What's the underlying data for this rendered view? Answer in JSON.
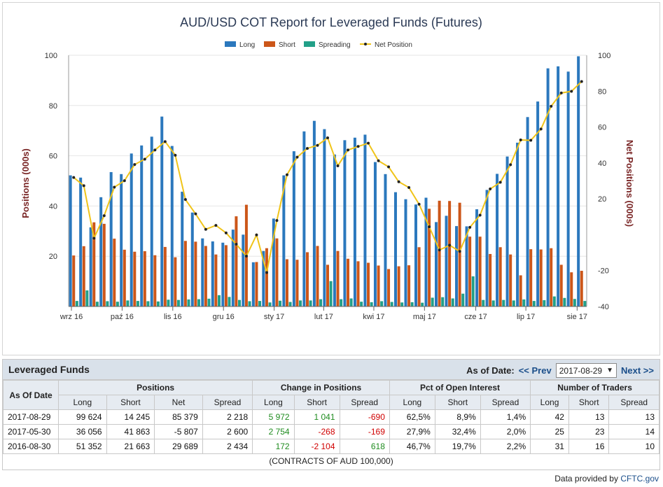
{
  "chart_data": {
    "type": "bar",
    "title": "AUD/USD COT Report for Leveraged Funds (Futures)",
    "ylabel": "Positions (000s)",
    "y2label": "Net Positions (000s)",
    "ylim": [
      0,
      100
    ],
    "y2lim": [
      -40,
      100
    ],
    "yticks": [
      20,
      40,
      60,
      80,
      100
    ],
    "y2ticks": [
      -40,
      -20,
      20,
      40,
      60,
      80,
      100
    ],
    "xtick_labels": [
      "wrz 16",
      "paź 16",
      "lis 16",
      "gru 16",
      "sty 17",
      "lut 17",
      "kwi 17",
      "maj 17",
      "cze 17",
      "lip 17",
      "sie 17"
    ],
    "legend": [
      "Long",
      "Short",
      "Spreading",
      "Net Position"
    ],
    "legend_position": "top-center",
    "colors": {
      "long": "#2b78bd",
      "short": "#cc5619",
      "spreading": "#22a088",
      "net": "#f0c419"
    },
    "series": [
      {
        "name": "Long",
        "values": [
          52.2,
          51.3,
          31.5,
          43.5,
          53.5,
          52.7,
          60.9,
          64.1,
          67.6,
          75.6,
          63.9,
          45.7,
          37.4,
          27.1,
          25.9,
          25.4,
          30.6,
          28.6,
          17.6,
          22.1,
          35.0,
          52.2,
          61.8,
          69.7,
          73.9,
          70.6,
          60.5,
          66.2,
          67.2,
          68.4,
          57.5,
          52.7,
          45.5,
          42.7,
          40.6,
          43.3,
          33.6,
          36.1,
          32.0,
          31.9,
          38.7,
          46.4,
          52.8,
          59.7,
          65.2,
          75.4,
          81.6,
          94.8,
          95.6,
          93.5,
          99.6
        ]
      },
      {
        "name": "Short",
        "values": [
          20.3,
          24.0,
          33.5,
          32.9,
          27.0,
          22.6,
          21.8,
          22.0,
          20.4,
          23.7,
          19.6,
          26.1,
          25.8,
          24.1,
          20.7,
          24.4,
          35.9,
          40.5,
          17.7,
          23.2,
          27.1,
          18.8,
          18.6,
          21.6,
          24.1,
          16.6,
          22.1,
          19.0,
          18.0,
          17.4,
          16.3,
          14.9,
          16.0,
          16.4,
          23.6,
          38.9,
          42.1,
          42.0,
          41.3,
          27.8,
          27.8,
          20.9,
          23.6,
          20.7,
          12.4,
          22.8,
          22.7,
          23.2,
          16.6,
          13.6,
          14.2
        ]
      },
      {
        "name": "Spreading",
        "values": [
          2.2,
          6.4,
          1.9,
          2.1,
          1.9,
          2.4,
          2.2,
          2.1,
          2.0,
          2.7,
          2.6,
          2.8,
          2.9,
          3.1,
          4.5,
          3.8,
          2.6,
          2.1,
          2.2,
          1.6,
          2.3,
          1.8,
          2.4,
          2.4,
          2.9,
          10.1,
          2.9,
          3.2,
          1.9,
          1.7,
          2.1,
          1.8,
          1.6,
          1.7,
          1.5,
          3.5,
          3.7,
          3.2,
          5.1,
          12.0,
          2.6,
          2.4,
          2.6,
          2.4,
          2.8,
          2.2,
          2.5,
          4.0,
          3.4,
          3.0,
          2.2
        ]
      },
      {
        "name": "Net Position",
        "values": [
          31.9,
          27.3,
          -2.0,
          10.6,
          26.5,
          30.1,
          39.1,
          42.1,
          47.2,
          51.9,
          44.3,
          19.6,
          11.6,
          3.0,
          5.2,
          1.0,
          -5.3,
          -11.9,
          -0.1,
          -21.1,
          7.9,
          33.4,
          43.2,
          48.1,
          49.8,
          54.0,
          38.4,
          47.2,
          49.2,
          51.0,
          41.2,
          37.8,
          29.5,
          26.3,
          17.0,
          4.4,
          -8.5,
          -5.9,
          -9.3,
          4.1,
          10.9,
          25.5,
          29.2,
          39.0,
          52.8,
          52.6,
          58.9,
          71.6,
          79.0,
          79.9,
          85.4
        ]
      }
    ]
  },
  "table": {
    "title": "Leveraged Funds",
    "as_of_label": "As of Date:",
    "prev_label": "<< Prev",
    "next_label": "Next >>",
    "selected_date": "2017-08-29",
    "dropdown_arrow": "▼",
    "headers": {
      "as_of_date": "As Of Date",
      "positions": "Positions",
      "change": "Change in Positions",
      "pct": "Pct of Open Interest",
      "traders": "Number of Traders",
      "positions_cols": [
        "Long",
        "Short",
        "Net",
        "Spread"
      ],
      "change_cols": [
        "Long",
        "Short",
        "Spread"
      ],
      "pct_cols": [
        "Long",
        "Short",
        "Spread"
      ],
      "traders_cols": [
        "Long",
        "Short",
        "Spread"
      ]
    },
    "rows": [
      {
        "date": "2017-08-29",
        "pos_long": "99 624",
        "pos_short": "14 245",
        "pos_net": "85 379",
        "pos_spread": "2 218",
        "chg_long": "5 972",
        "chg_short": "1 041",
        "chg_spread": "-690",
        "pct_long": "62,5%",
        "pct_short": "8,9%",
        "pct_spread": "1,4%",
        "tr_long": "42",
        "tr_short": "13",
        "tr_spread": "13"
      },
      {
        "date": "2017-05-30",
        "pos_long": "36 056",
        "pos_short": "41 863",
        "pos_net": "-5 807",
        "pos_spread": "2 600",
        "chg_long": "2 754",
        "chg_short": "-268",
        "chg_spread": "-169",
        "pct_long": "27,9%",
        "pct_short": "32,4%",
        "pct_spread": "2,0%",
        "tr_long": "25",
        "tr_short": "23",
        "tr_spread": "14"
      },
      {
        "date": "2016-08-30",
        "pos_long": "51 352",
        "pos_short": "21 663",
        "pos_net": "29 689",
        "pos_spread": "2 434",
        "chg_long": "172",
        "chg_short": "-2 104",
        "chg_spread": "618",
        "pct_long": "46,7%",
        "pct_short": "19,7%",
        "pct_spread": "2,2%",
        "tr_long": "31",
        "tr_short": "16",
        "tr_spread": "10"
      }
    ],
    "note": "(CONTRACTS OF AUD 100,000)"
  },
  "footer": {
    "prefix": "Data provided by",
    "link": "CFTC.gov"
  }
}
